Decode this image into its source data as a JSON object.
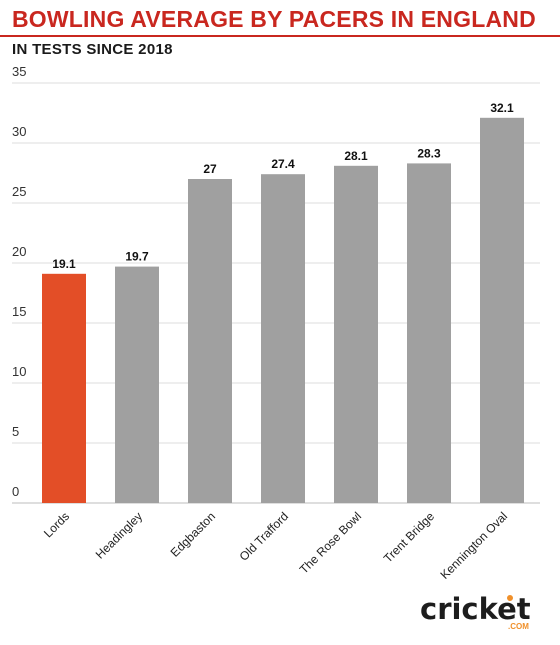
{
  "header": {
    "title": "BOWLING AVERAGE BY PACERS IN ENGLAND",
    "subtitle": "IN TESTS SINCE 2018"
  },
  "logo": {
    "text": "cricket",
    "sub": ".COM"
  },
  "colors": {
    "title": "#c9271f",
    "highlight_bar": "#e34e27",
    "bar": "#a0a0a0",
    "grid": "#dcdcdc"
  },
  "chart_data": {
    "type": "bar",
    "title": "BOWLING AVERAGE BY PACERS IN ENGLAND",
    "subtitle": "IN TESTS SINCE 2018",
    "xlabel": "",
    "ylabel": "",
    "categories": [
      "Lords",
      "Headingley",
      "Edgbaston",
      "Old Trafford",
      "The Rose Bowl",
      "Trent Bridge",
      "Kennington Oval"
    ],
    "values": [
      19.1,
      19.7,
      27,
      27.4,
      28.1,
      28.3,
      32.1
    ],
    "value_labels": [
      "19.1",
      "19.7",
      "27",
      "27.4",
      "28.1",
      "28.3",
      "32.1"
    ],
    "highlight_index": 0,
    "ylim": [
      0,
      35
    ],
    "yticks": [
      0,
      5,
      10,
      15,
      20,
      25,
      30,
      35
    ],
    "grid": true,
    "legend": "none"
  }
}
